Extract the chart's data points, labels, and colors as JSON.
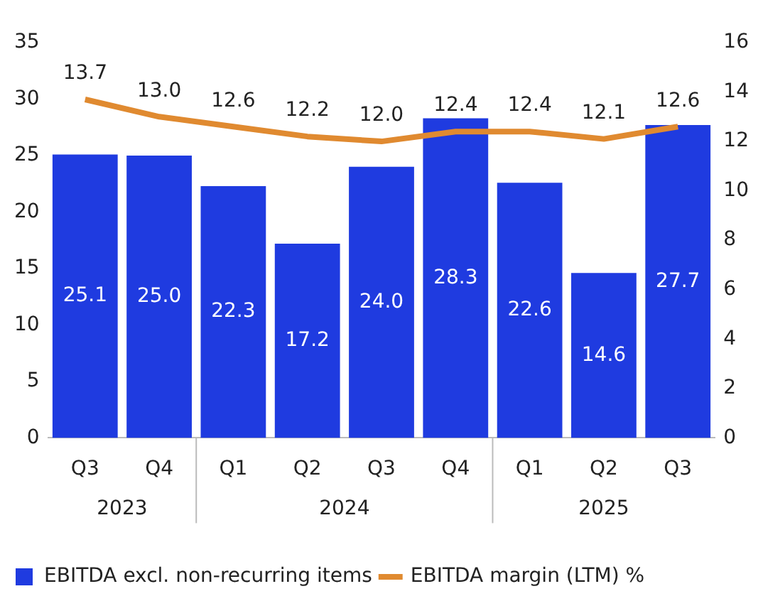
{
  "chart_data": {
    "type": "bar",
    "categories": [
      "Q3",
      "Q4",
      "Q1",
      "Q2",
      "Q3",
      "Q4",
      "Q1",
      "Q2",
      "Q3"
    ],
    "series": [
      {
        "name": "EBITDA excl. non-recurring items",
        "color": "#1f3be0",
        "values": [
          25.1,
          25.0,
          22.3,
          17.2,
          24.0,
          28.3,
          22.6,
          14.6,
          27.7
        ],
        "value_labels": [
          "25.1",
          "25.0",
          "22.3",
          "17.2",
          "24.0",
          "28.3",
          "22.6",
          "14.6",
          "27.7"
        ]
      },
      {
        "name": "EBITDA margin (LTM) %",
        "type": "line",
        "axis": "y2",
        "color": "#e08a30",
        "values": [
          13.7,
          13.0,
          12.6,
          12.2,
          12.0,
          12.4,
          12.4,
          12.1,
          12.6
        ],
        "value_labels": [
          "13.7",
          "13.0",
          "12.6",
          "12.2",
          "12.0",
          "12.4",
          "12.4",
          "12.1",
          "12.6"
        ]
      }
    ],
    "ylim": [
      0,
      35
    ],
    "yticks": [
      0,
      5,
      10,
      15,
      20,
      25,
      30,
      35
    ],
    "y2lim": [
      0,
      16
    ],
    "y2ticks": [
      0,
      2,
      4,
      6,
      8,
      10,
      12,
      14,
      16
    ],
    "annotations": [
      "2023",
      "2024",
      "2025"
    ],
    "grid": false,
    "legend": "bottom",
    "marker": "none"
  }
}
